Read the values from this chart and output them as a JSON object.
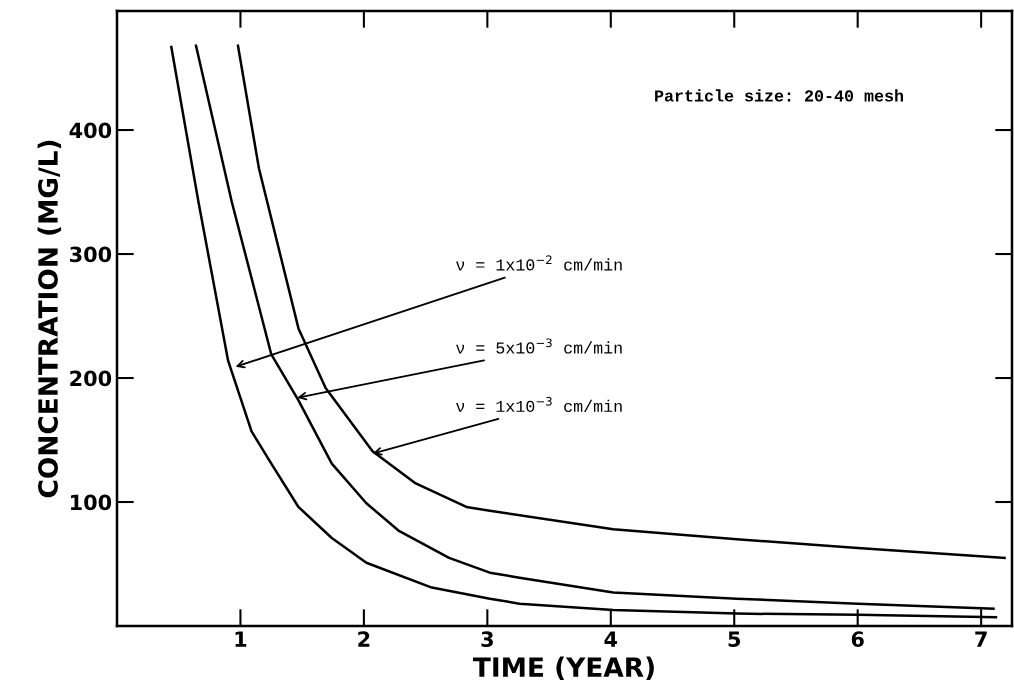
{
  "chart_data": {
    "type": "line",
    "xlabel": "TIME (YEAR)",
    "ylabel": "CONCENTRATION (MG/L)",
    "xlim": [
      0,
      7.25
    ],
    "ylim": [
      0,
      496
    ],
    "xticks": [
      1,
      2,
      3,
      4,
      5,
      6,
      7
    ],
    "yticks": [
      100,
      200,
      300,
      400
    ],
    "grid": false,
    "legend": false,
    "marker": "none",
    "line_style": "solid",
    "series": [
      {
        "color": "#000000",
        "x": [
          0.44,
          0.66,
          0.9,
          1.09,
          1.25,
          1.47,
          1.74,
          2.02,
          2.55,
          3.02,
          3.26,
          4.02,
          5.02,
          6.0,
          7.12
        ],
        "values": [
          467,
          342,
          214,
          157,
          131,
          96,
          71,
          51,
          31,
          22,
          18,
          13,
          10,
          9,
          7
        ]
      },
      {
        "color": "#000000",
        "x": [
          0.64,
          0.93,
          1.25,
          1.47,
          1.74,
          2.02,
          2.28,
          2.69,
          3.02,
          3.26,
          4.02,
          5.02,
          6.0,
          7.1
        ],
        "values": [
          468,
          342,
          219,
          182,
          131,
          99,
          77,
          55,
          43,
          39,
          27,
          22,
          18,
          14
        ]
      },
      {
        "color": "#000000",
        "x": [
          0.98,
          1.15,
          1.47,
          1.69,
          2.07,
          2.42,
          2.83,
          3.02,
          4.02,
          5.02,
          6.0,
          7.19
        ],
        "values": [
          468,
          369,
          240,
          192,
          141,
          115,
          96,
          93,
          78,
          70,
          63,
          55
        ]
      }
    ],
    "annotations": [
      "Particle size: 20-40 mesh",
      {
        "text": "ν = 1x10$^{−2}$ cm/min",
        "x": 0.96,
        "y": 209
      },
      {
        "text": "ν = 5x10$^{−3}$ cm/min",
        "x": 1.46,
        "y": 184
      },
      {
        "text": "ν = 1x10$^{−3}$ cm/min",
        "x": 2.07,
        "y": 139
      }
    ]
  }
}
